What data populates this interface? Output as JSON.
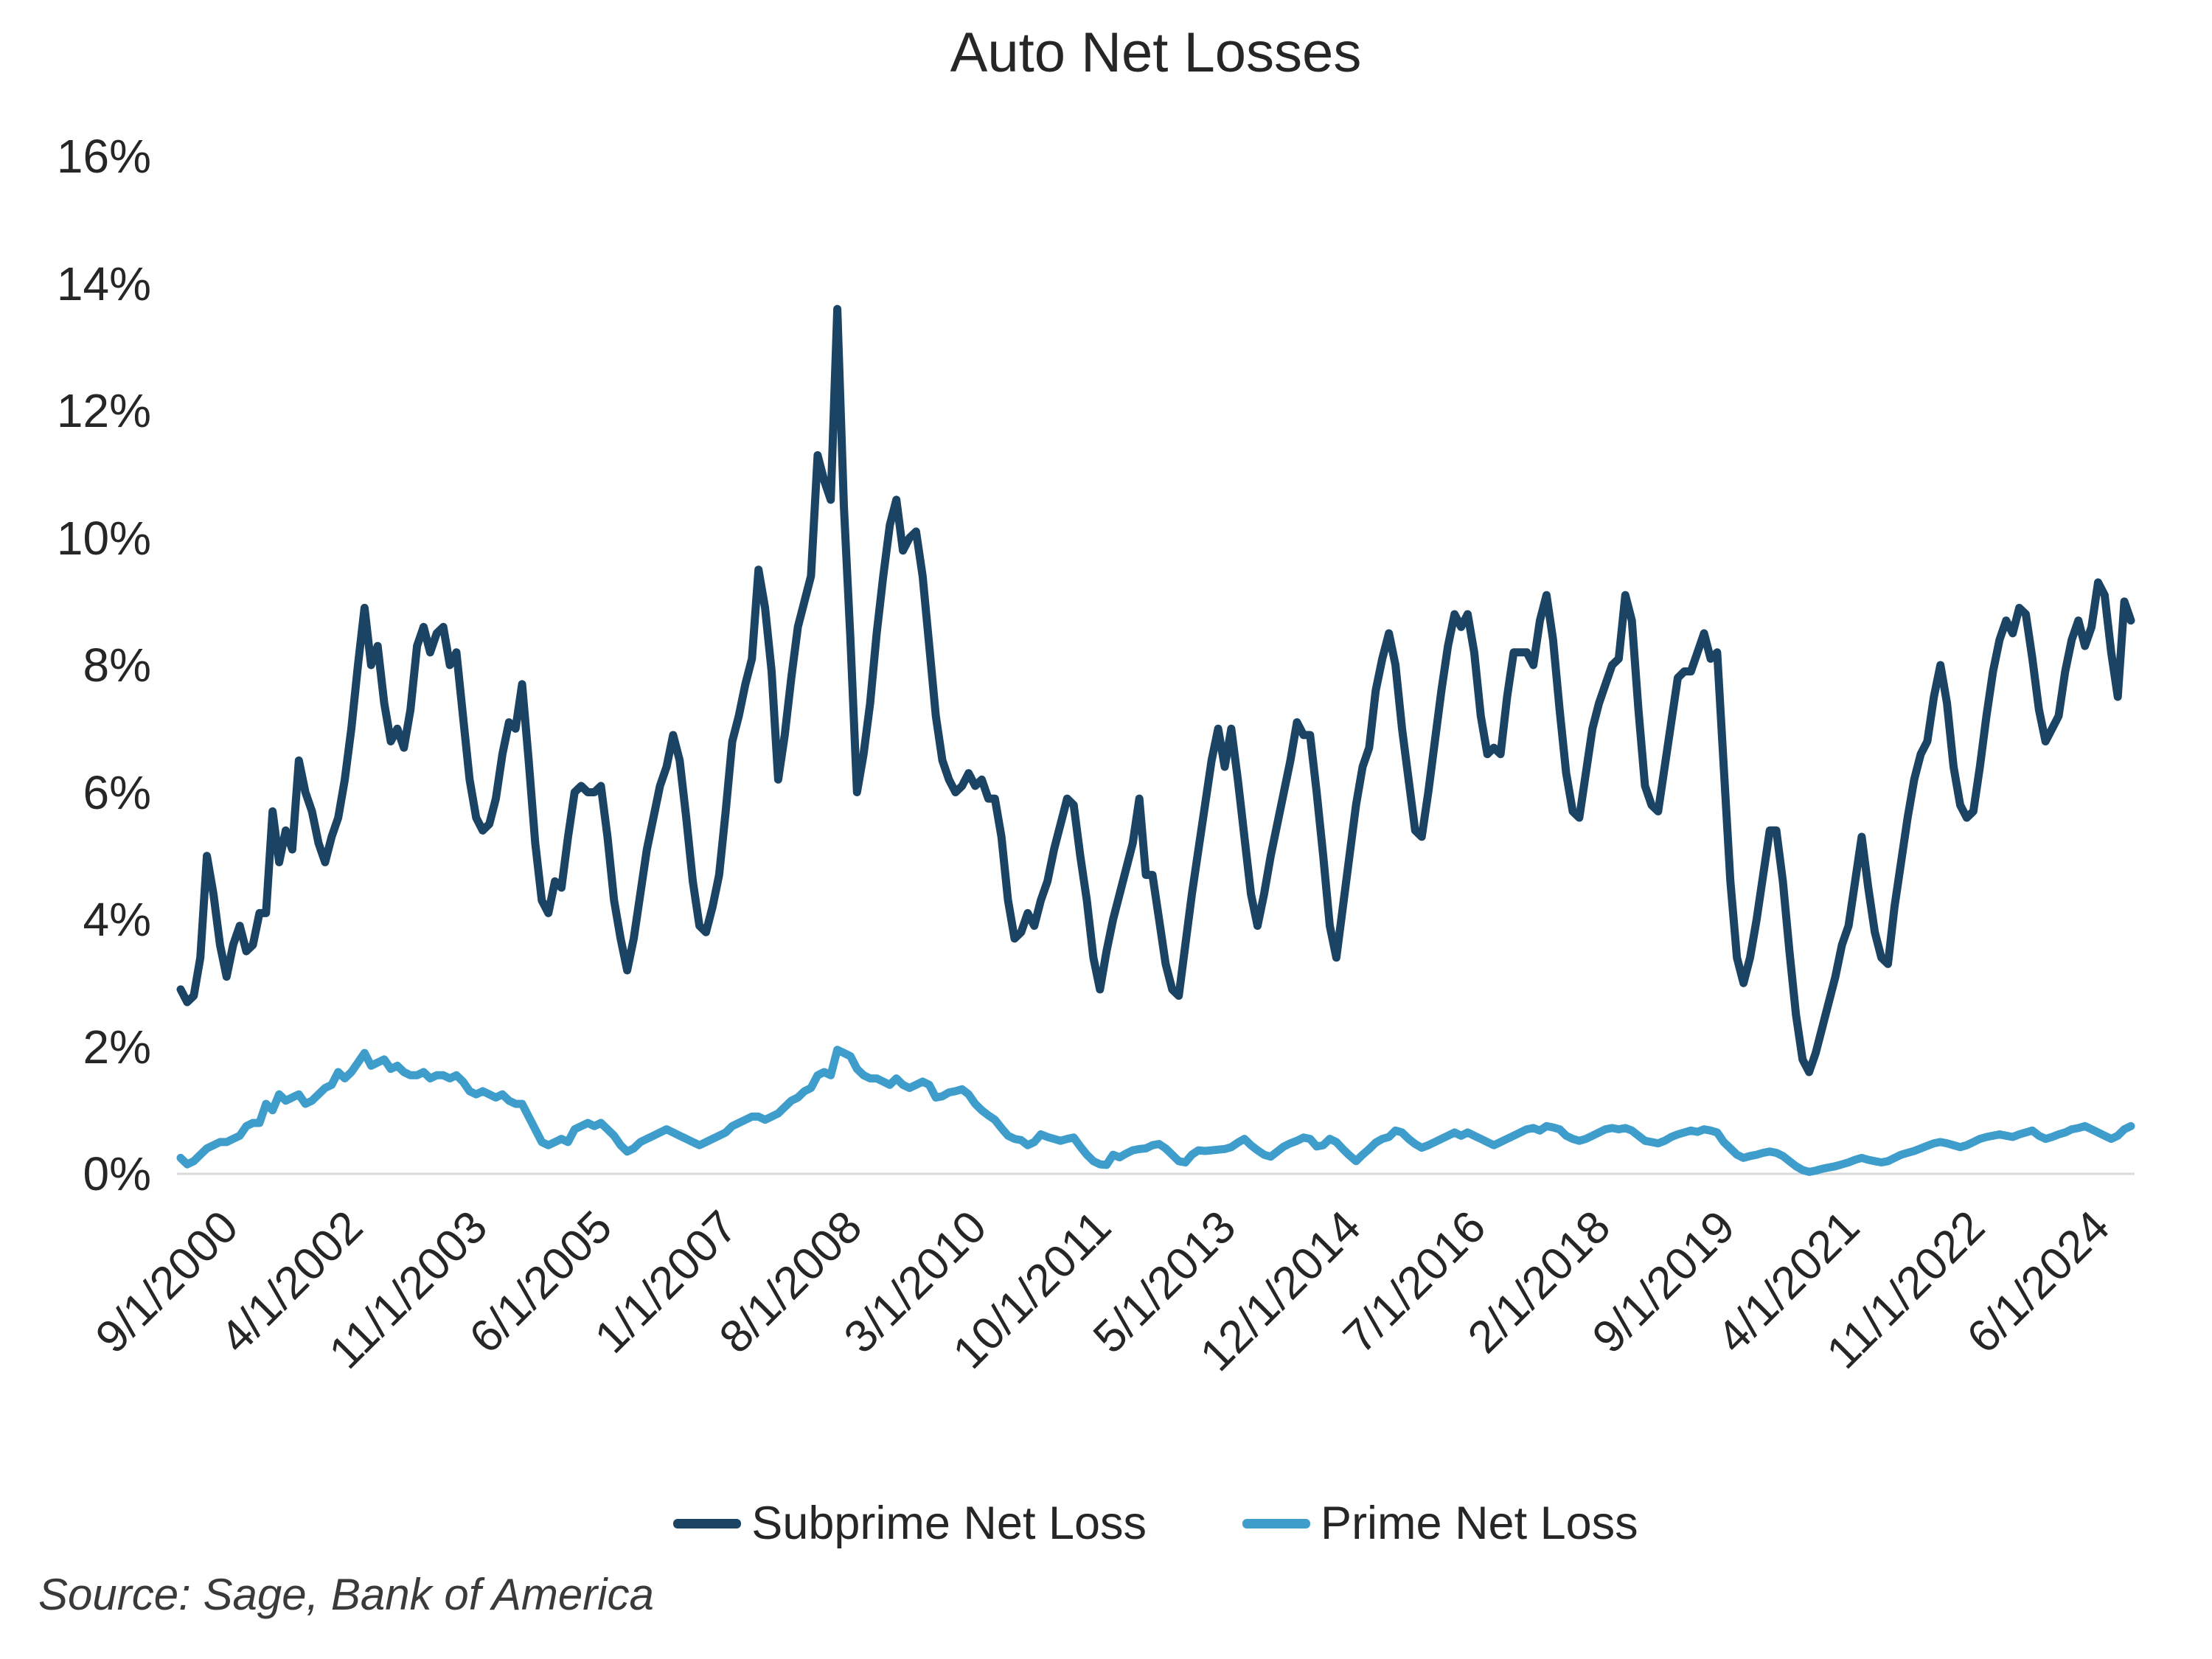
{
  "title": "Auto Net Losses",
  "source": "Source: Sage, Bank of America",
  "legend": [
    {
      "label": "Subprime Net Loss",
      "color": "#1B4363"
    },
    {
      "label": "Prime Net Loss",
      "color": "#3E9DCB"
    }
  ],
  "chart_data": {
    "type": "line",
    "title": "Auto Net Losses",
    "xlabel": "",
    "ylabel": "",
    "x_unit": "monthly",
    "x_start": "9/1/2000",
    "x_end": "6/1/2025",
    "ylim": [
      0,
      16
    ],
    "grid": false,
    "legend_position": "bottom",
    "y_tick_labels": [
      "0%",
      "2%",
      "4%",
      "6%",
      "8%",
      "10%",
      "12%",
      "14%",
      "16%"
    ],
    "x_tick_labels": [
      "9/1/2000",
      "4/1/2002",
      "11/1/2003",
      "6/1/2005",
      "1/1/2007",
      "8/1/2008",
      "3/1/2010",
      "10/1/2011",
      "5/1/2013",
      "12/1/2014",
      "7/1/2016",
      "2/1/2018",
      "9/1/2019",
      "4/1/2021",
      "11/1/2022",
      "6/1/2024"
    ],
    "x_tick_interval_months": 19,
    "series": [
      {
        "name": "Subprime Net Loss",
        "color": "#1B4363",
        "values": [
          2.9,
          2.7,
          2.8,
          3.4,
          5.0,
          4.4,
          3.6,
          3.1,
          3.6,
          3.9,
          3.5,
          3.6,
          4.1,
          4.1,
          5.7,
          4.9,
          5.4,
          5.1,
          6.5,
          6.0,
          5.7,
          5.2,
          4.9,
          5.3,
          5.6,
          6.2,
          7.0,
          8.0,
          8.9,
          8.0,
          8.3,
          7.4,
          6.8,
          7.0,
          6.7,
          7.3,
          8.3,
          8.6,
          8.2,
          8.5,
          8.6,
          8.0,
          8.2,
          7.2,
          6.2,
          5.6,
          5.4,
          5.5,
          5.9,
          6.6,
          7.1,
          7.0,
          7.7,
          6.5,
          5.2,
          4.3,
          4.1,
          4.6,
          4.5,
          5.3,
          6.0,
          6.1,
          6.0,
          6.0,
          6.1,
          5.3,
          4.3,
          3.7,
          3.2,
          3.7,
          4.4,
          5.1,
          5.6,
          6.1,
          6.4,
          6.9,
          6.5,
          5.6,
          4.6,
          3.9,
          3.8,
          4.2,
          4.7,
          5.7,
          6.8,
          7.2,
          7.7,
          8.1,
          9.5,
          8.9,
          7.9,
          6.2,
          6.9,
          7.8,
          8.6,
          9.0,
          9.4,
          11.3,
          10.9,
          10.6,
          13.6,
          10.5,
          8.4,
          6.0,
          6.6,
          7.4,
          8.5,
          9.4,
          10.2,
          10.6,
          9.8,
          10.0,
          10.1,
          9.4,
          8.3,
          7.2,
          6.5,
          6.2,
          6.0,
          6.1,
          6.3,
          6.1,
          6.2,
          5.9,
          5.9,
          5.3,
          4.3,
          3.7,
          3.8,
          4.1,
          3.9,
          4.3,
          4.6,
          5.1,
          5.5,
          5.9,
          5.8,
          5.0,
          4.3,
          3.4,
          2.9,
          3.5,
          4.0,
          4.4,
          4.8,
          5.2,
          5.9,
          4.7,
          4.7,
          4.0,
          3.3,
          2.9,
          2.8,
          3.6,
          4.4,
          5.1,
          5.8,
          6.5,
          7.0,
          6.4,
          7.0,
          6.2,
          5.3,
          4.4,
          3.9,
          4.4,
          5.0,
          5.5,
          6.0,
          6.5,
          7.1,
          6.9,
          6.9,
          6.0,
          5.0,
          3.9,
          3.4,
          4.2,
          5.0,
          5.8,
          6.4,
          6.7,
          7.6,
          8.1,
          8.5,
          8.0,
          7.0,
          6.2,
          5.4,
          5.3,
          6.0,
          6.8,
          7.6,
          8.3,
          8.8,
          8.6,
          8.8,
          8.2,
          7.2,
          6.6,
          6.7,
          6.6,
          7.5,
          8.2,
          8.2,
          8.2,
          8.0,
          8.7,
          9.1,
          8.4,
          7.3,
          6.3,
          5.7,
          5.6,
          6.3,
          7.0,
          7.4,
          7.7,
          8.0,
          8.1,
          9.1,
          8.7,
          7.3,
          6.1,
          5.8,
          5.7,
          6.4,
          7.1,
          7.8,
          7.9,
          7.9,
          8.2,
          8.5,
          8.1,
          8.2,
          6.4,
          4.6,
          3.4,
          3.0,
          3.4,
          4.0,
          4.7,
          5.4,
          5.4,
          4.6,
          3.5,
          2.5,
          1.8,
          1.6,
          1.9,
          2.3,
          2.7,
          3.1,
          3.6,
          3.9,
          4.6,
          5.3,
          4.5,
          3.8,
          3.4,
          3.3,
          4.2,
          4.9,
          5.6,
          6.2,
          6.6,
          6.8,
          7.5,
          8.0,
          7.4,
          6.4,
          5.8,
          5.6,
          5.7,
          6.4,
          7.2,
          7.9,
          8.4,
          8.7,
          8.5,
          8.9,
          8.8,
          8.1,
          7.3,
          6.8,
          7.0,
          7.2,
          7.9,
          8.4,
          8.7,
          8.3,
          8.6,
          9.3,
          9.1,
          8.2,
          7.5,
          9.0,
          8.7
        ]
      },
      {
        "name": "Prime Net Loss",
        "color": "#3E9DCB",
        "values": [
          0.25,
          0.15,
          0.2,
          0.3,
          0.4,
          0.45,
          0.5,
          0.5,
          0.55,
          0.6,
          0.75,
          0.8,
          0.8,
          1.1,
          1.0,
          1.25,
          1.15,
          1.2,
          1.25,
          1.1,
          1.15,
          1.25,
          1.35,
          1.4,
          1.6,
          1.5,
          1.6,
          1.75,
          1.9,
          1.7,
          1.75,
          1.8,
          1.65,
          1.7,
          1.6,
          1.55,
          1.55,
          1.6,
          1.5,
          1.55,
          1.55,
          1.5,
          1.55,
          1.45,
          1.3,
          1.25,
          1.3,
          1.25,
          1.2,
          1.25,
          1.15,
          1.1,
          1.1,
          0.9,
          0.7,
          0.5,
          0.45,
          0.5,
          0.55,
          0.5,
          0.7,
          0.75,
          0.8,
          0.75,
          0.8,
          0.7,
          0.6,
          0.45,
          0.35,
          0.4,
          0.5,
          0.55,
          0.6,
          0.65,
          0.7,
          0.65,
          0.6,
          0.55,
          0.5,
          0.45,
          0.5,
          0.55,
          0.6,
          0.65,
          0.75,
          0.8,
          0.85,
          0.9,
          0.9,
          0.85,
          0.9,
          0.95,
          1.05,
          1.15,
          1.2,
          1.3,
          1.35,
          1.55,
          1.6,
          1.55,
          1.95,
          1.9,
          1.85,
          1.65,
          1.55,
          1.5,
          1.5,
          1.45,
          1.4,
          1.5,
          1.4,
          1.35,
          1.4,
          1.45,
          1.4,
          1.2,
          1.22,
          1.28,
          1.3,
          1.33,
          1.25,
          1.1,
          1.0,
          0.92,
          0.85,
          0.72,
          0.6,
          0.55,
          0.53,
          0.45,
          0.5,
          0.62,
          0.58,
          0.55,
          0.52,
          0.55,
          0.57,
          0.43,
          0.3,
          0.2,
          0.15,
          0.14,
          0.3,
          0.26,
          0.32,
          0.37,
          0.39,
          0.4,
          0.45,
          0.47,
          0.4,
          0.3,
          0.2,
          0.18,
          0.3,
          0.37,
          0.36,
          0.37,
          0.38,
          0.39,
          0.42,
          0.49,
          0.55,
          0.45,
          0.37,
          0.3,
          0.27,
          0.35,
          0.43,
          0.48,
          0.52,
          0.57,
          0.55,
          0.43,
          0.45,
          0.55,
          0.5,
          0.39,
          0.29,
          0.2,
          0.3,
          0.39,
          0.49,
          0.55,
          0.58,
          0.68,
          0.65,
          0.55,
          0.47,
          0.41,
          0.45,
          0.5,
          0.55,
          0.6,
          0.65,
          0.6,
          0.65,
          0.6,
          0.55,
          0.5,
          0.45,
          0.5,
          0.55,
          0.6,
          0.65,
          0.7,
          0.72,
          0.68,
          0.75,
          0.73,
          0.7,
          0.6,
          0.55,
          0.52,
          0.55,
          0.6,
          0.65,
          0.7,
          0.72,
          0.7,
          0.72,
          0.68,
          0.6,
          0.52,
          0.5,
          0.48,
          0.52,
          0.58,
          0.62,
          0.65,
          0.68,
          0.66,
          0.7,
          0.68,
          0.65,
          0.5,
          0.4,
          0.3,
          0.25,
          0.28,
          0.3,
          0.33,
          0.35,
          0.33,
          0.28,
          0.2,
          0.12,
          0.06,
          0.03,
          0.05,
          0.08,
          0.1,
          0.12,
          0.15,
          0.18,
          0.22,
          0.25,
          0.22,
          0.2,
          0.18,
          0.2,
          0.25,
          0.3,
          0.33,
          0.36,
          0.4,
          0.44,
          0.48,
          0.5,
          0.48,
          0.45,
          0.42,
          0.45,
          0.5,
          0.55,
          0.58,
          0.6,
          0.62,
          0.6,
          0.58,
          0.62,
          0.65,
          0.68,
          0.6,
          0.55,
          0.58,
          0.62,
          0.65,
          0.7,
          0.72,
          0.75,
          0.7,
          0.65,
          0.6,
          0.55,
          0.6,
          0.7,
          0.75
        ]
      }
    ]
  }
}
